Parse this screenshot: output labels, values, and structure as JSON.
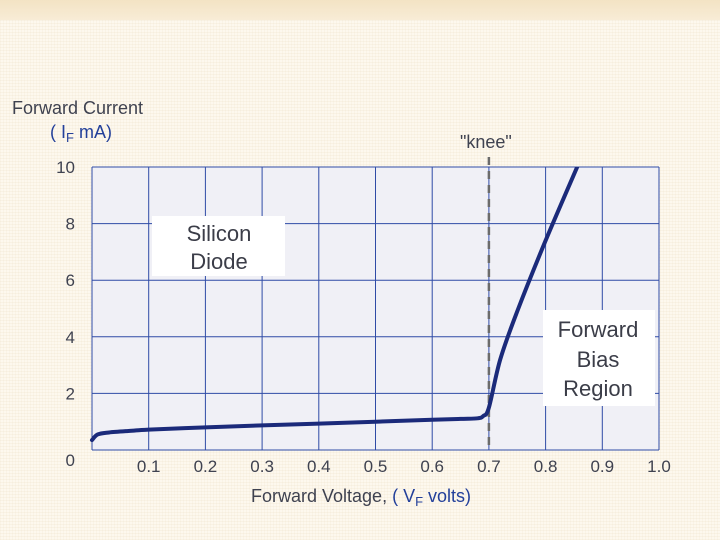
{
  "chart_data": {
    "type": "line",
    "ylabel_line1": "Forward Current",
    "ylabel_unit_prefix": "( I",
    "ylabel_unit_sub": "F",
    "ylabel_unit_suffix": " mA)",
    "xlabel_prefix": "Forward Voltage,",
    "xlabel_unit_prefix": " ( V",
    "xlabel_unit_sub": "F",
    "xlabel_unit_suffix": " volts)",
    "xlim": [
      0,
      1.0
    ],
    "ylim": [
      0,
      10
    ],
    "x_ticks": [
      "0.1",
      "0.2",
      "0.3",
      "0.4",
      "0.5",
      "0.6",
      "0.7",
      "0.8",
      "0.9",
      "1.0"
    ],
    "y_ticks": [
      "0",
      "2",
      "4",
      "6",
      "8",
      "10"
    ],
    "grid": true,
    "knee_label": "\"knee\"",
    "knee_x": 0.7,
    "annotations": {
      "device_line1": "Silicon",
      "device_line2": "Diode",
      "region_line1": "Forward",
      "region_line2": "Bias",
      "region_line3": "Region"
    },
    "series": [
      {
        "x": [
          0.0,
          0.01,
          0.03,
          0.07,
          0.1,
          0.2,
          0.3,
          0.4,
          0.5,
          0.6,
          0.65,
          0.68,
          0.69,
          0.7,
          0.72,
          0.75,
          0.8,
          0.86
        ],
        "y": [
          0.35,
          0.55,
          0.62,
          0.68,
          0.72,
          0.8,
          0.87,
          0.93,
          1.0,
          1.07,
          1.1,
          1.12,
          1.2,
          1.5,
          3.2,
          4.9,
          7.4,
          10.2
        ]
      }
    ],
    "colors": {
      "curve": "#1b2a7a",
      "grid": "#2f4ba6",
      "plot_bg": "#f0f0f6",
      "knee_line": "#6b6b6b",
      "axis_labels": "#23409a"
    }
  }
}
